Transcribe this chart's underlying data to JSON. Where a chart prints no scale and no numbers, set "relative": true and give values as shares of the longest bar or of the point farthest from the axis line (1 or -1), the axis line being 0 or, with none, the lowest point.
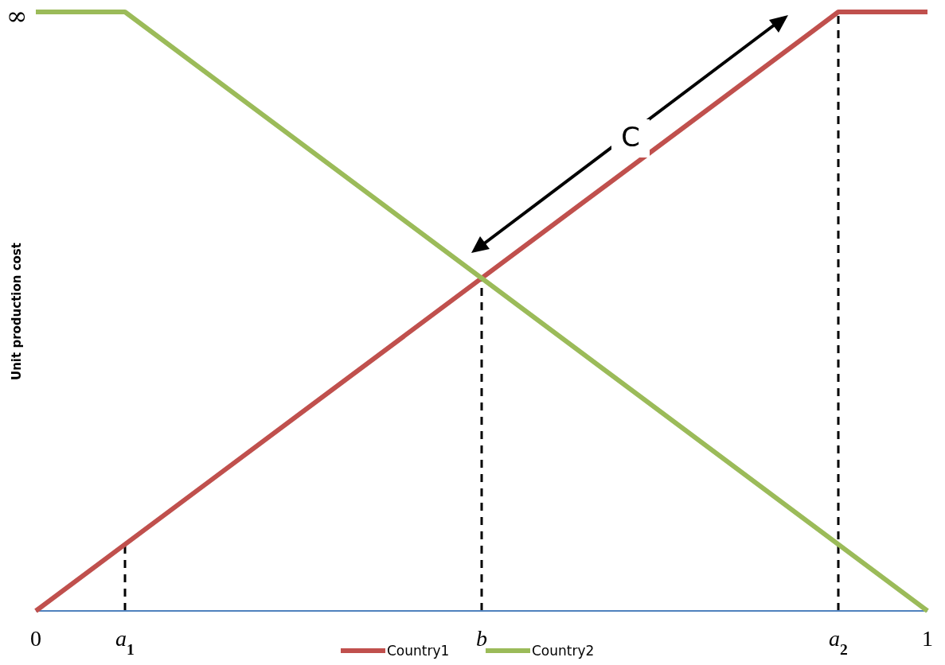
{
  "chart_data": {
    "type": "line",
    "relative": true,
    "ylabel": "Unit production cost",
    "xlim": [
      0,
      1
    ],
    "xticks": [
      0,
      1
    ],
    "series": [
      {
        "name": "Country1",
        "color": "#c0504d",
        "x": [
          0,
          0.9,
          1
        ],
        "values": [
          0,
          1,
          1
        ]
      },
      {
        "name": "Country2",
        "color": "#9bbb59",
        "x": [
          0,
          0.1,
          1
        ],
        "values": [
          1,
          1,
          0
        ]
      }
    ],
    "ref_lines": [
      {
        "axis": "x",
        "value": 0.1,
        "label": "a$_{1}$",
        "color": "#000000",
        "line_style": "dashed"
      },
      {
        "axis": "x",
        "value": 0.5,
        "label": "b",
        "color": "#000000",
        "line_style": "dashed"
      },
      {
        "axis": "x",
        "value": 0.9,
        "label": "a$_{2}$",
        "color": "#000000",
        "line_style": "dashed"
      }
    ],
    "annotations": [
      {
        "text": "∞",
        "x": 0,
        "y": 1
      },
      "C"
    ],
    "legend": "bottom",
    "grid": false,
    "marker": "none",
    "line_style": "solid"
  }
}
